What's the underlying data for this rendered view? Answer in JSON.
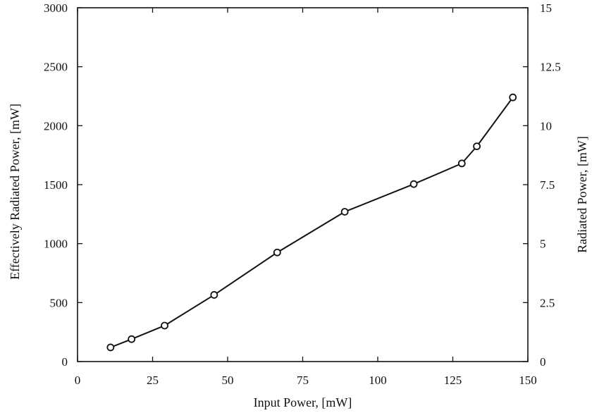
{
  "chart_data": {
    "type": "line",
    "title": "",
    "xlabel": "Input Power, [mW]",
    "ylabel": "Effectively Radiated Power, [mW]",
    "y2label": "Radiated Power, [mW]",
    "xlim": [
      0,
      150
    ],
    "ylim": [
      0,
      3000
    ],
    "y2lim": [
      0,
      15
    ],
    "xticks": [
      "0",
      "25",
      "50",
      "75",
      "100",
      "125",
      "150"
    ],
    "xtick_values": [
      0,
      25,
      50,
      75,
      100,
      125,
      150
    ],
    "yticks": [
      "0",
      "500",
      "1000",
      "1500",
      "2000",
      "2500",
      "3000"
    ],
    "ytick_values": [
      0,
      500,
      1000,
      1500,
      2000,
      2500,
      3000
    ],
    "y2ticks": [
      "0",
      "2.5",
      "5",
      "7.5",
      "10",
      "12.5",
      "15"
    ],
    "y2tick_values": [
      0,
      2.5,
      5,
      7.5,
      10,
      12.5,
      15
    ],
    "grid": false,
    "marker": "open-circle",
    "series": [
      {
        "x": [
          11,
          18,
          29,
          45.5,
          66.5,
          89,
          112,
          128,
          133,
          145
        ],
        "y": [
          120,
          190,
          305,
          565,
          925,
          1270,
          1505,
          1680,
          1825,
          2240
        ]
      }
    ]
  }
}
